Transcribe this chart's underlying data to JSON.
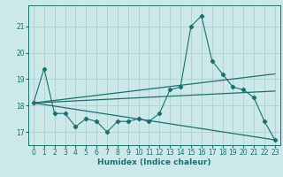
{
  "xlabel": "Humidex (Indice chaleur)",
  "bg_color": "#cce8e8",
  "line_color": "#1a7070",
  "grid_color": "#aacccc",
  "xlim": [
    -0.5,
    23.5
  ],
  "ylim": [
    16.5,
    21.8
  ],
  "yticks": [
    17,
    18,
    19,
    20,
    21
  ],
  "xticks": [
    0,
    1,
    2,
    3,
    4,
    5,
    6,
    7,
    8,
    9,
    10,
    11,
    12,
    13,
    14,
    15,
    16,
    17,
    18,
    19,
    20,
    21,
    22,
    23
  ],
  "series1_x": [
    0,
    1,
    2,
    3,
    4,
    5,
    6,
    7,
    8,
    9,
    10,
    11,
    12,
    13,
    14,
    15,
    16,
    17,
    18,
    19,
    20,
    21,
    22,
    23
  ],
  "series1_y": [
    18.1,
    19.4,
    17.7,
    17.7,
    17.2,
    17.5,
    17.4,
    17.0,
    17.4,
    17.4,
    17.5,
    17.4,
    17.7,
    18.6,
    18.7,
    21.0,
    21.4,
    19.7,
    19.2,
    18.7,
    18.6,
    18.3,
    17.4,
    16.7
  ],
  "series2_x": [
    0,
    23
  ],
  "series2_y": [
    18.1,
    19.2
  ],
  "series3_x": [
    0,
    23
  ],
  "series3_y": [
    18.1,
    18.55
  ],
  "series4_x": [
    0,
    23
  ],
  "series4_y": [
    18.1,
    16.7
  ],
  "xlabel_fontsize": 6.5,
  "tick_fontsize": 5.5
}
